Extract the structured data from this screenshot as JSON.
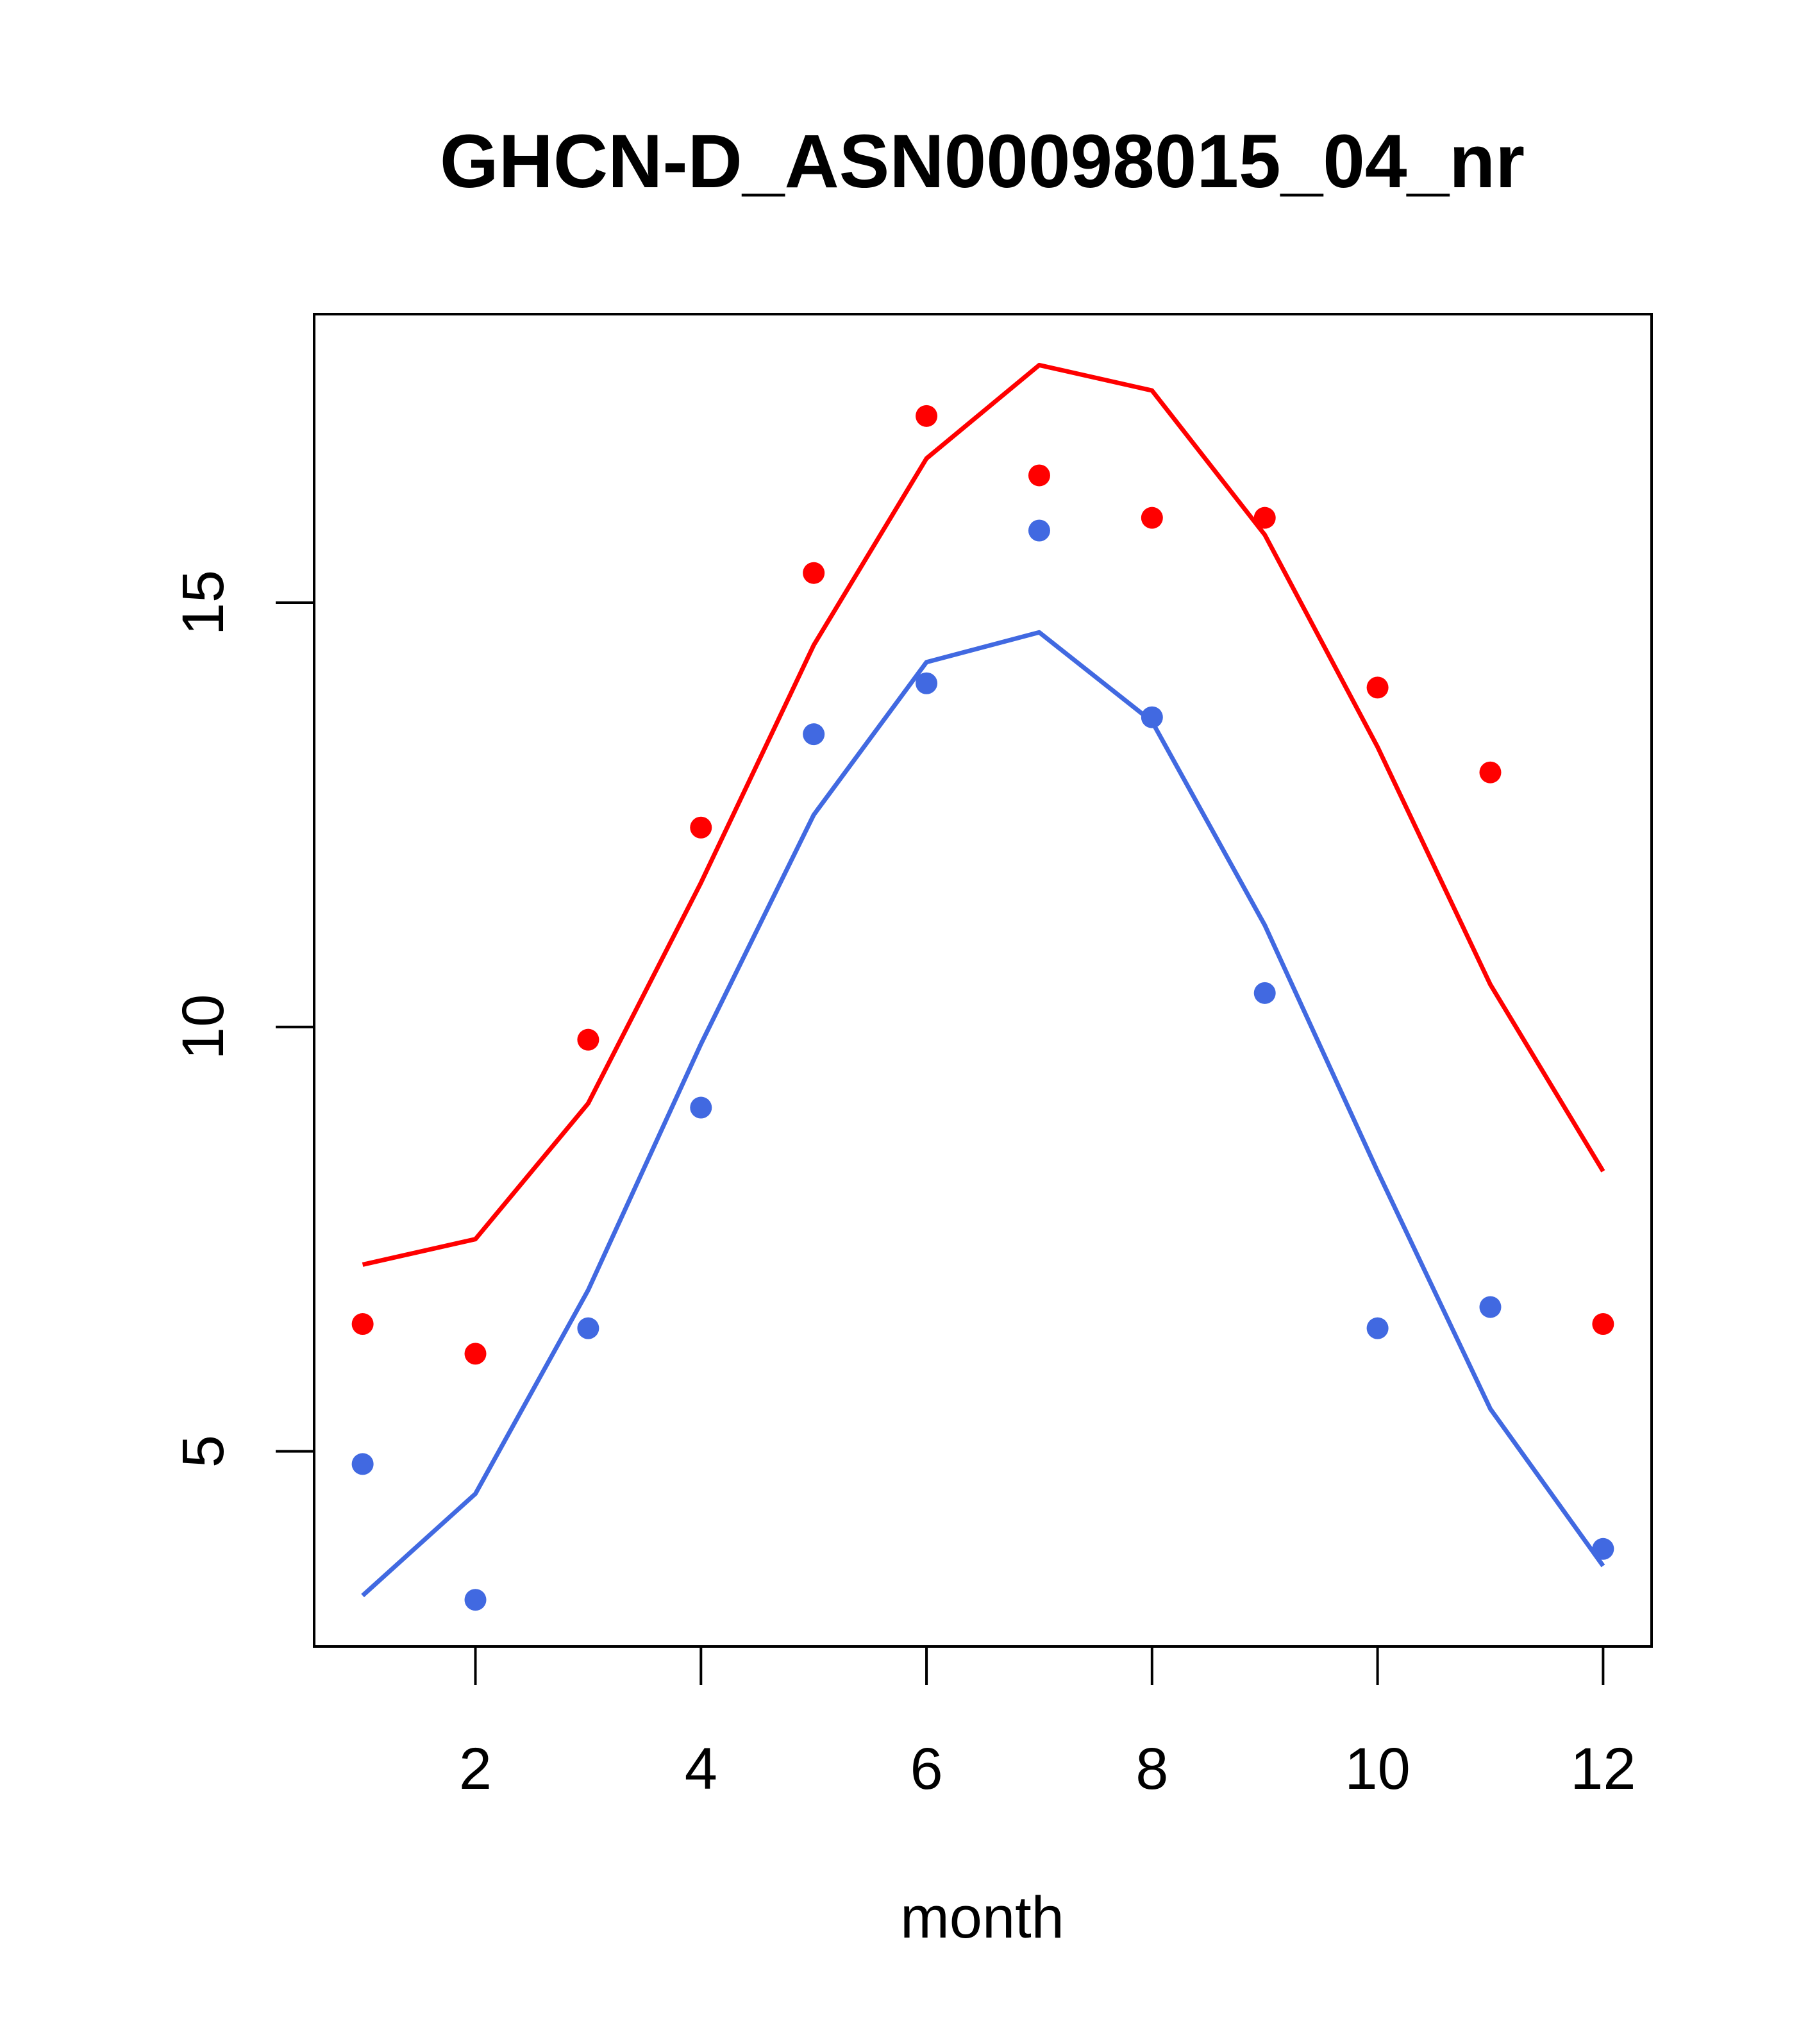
{
  "chart_data": {
    "type": "line",
    "title": "GHCN-D_ASN00098015_04_nr",
    "xlabel": "month",
    "ylabel": "",
    "xlim": [
      0.57,
      12.43
    ],
    "ylim": [
      2.7,
      18.4
    ],
    "x_ticks": [
      2,
      4,
      6,
      8,
      10,
      12
    ],
    "y_ticks": [
      5,
      10,
      15
    ],
    "x_tick_labels": [
      "2",
      "4",
      "6",
      "8",
      "10",
      "12"
    ],
    "y_tick_labels": [
      "5",
      "10",
      "15"
    ],
    "grid": false,
    "legend": "none",
    "x": [
      1,
      2,
      3,
      4,
      5,
      6,
      7,
      8,
      9,
      10,
      11,
      12
    ],
    "series": [
      {
        "color": "#ff0000",
        "line": [
          7.2,
          7.5,
          9.1,
          11.7,
          14.5,
          16.7,
          17.8,
          17.5,
          15.8,
          13.3,
          10.5,
          8.3
        ],
        "points": [
          6.5,
          6.15,
          9.85,
          12.35,
          15.35,
          17.2,
          16.5,
          16.0,
          16.0,
          14.0,
          13.0,
          6.5
        ]
      },
      {
        "color": "#4169e1",
        "line": [
          3.3,
          4.5,
          6.9,
          9.8,
          12.5,
          14.3,
          14.65,
          13.6,
          11.2,
          8.3,
          5.5,
          3.65
        ],
        "points": [
          4.85,
          3.25,
          6.45,
          9.05,
          13.45,
          14.05,
          15.85,
          13.65,
          10.4,
          6.45,
          6.7,
          3.85
        ]
      }
    ]
  }
}
